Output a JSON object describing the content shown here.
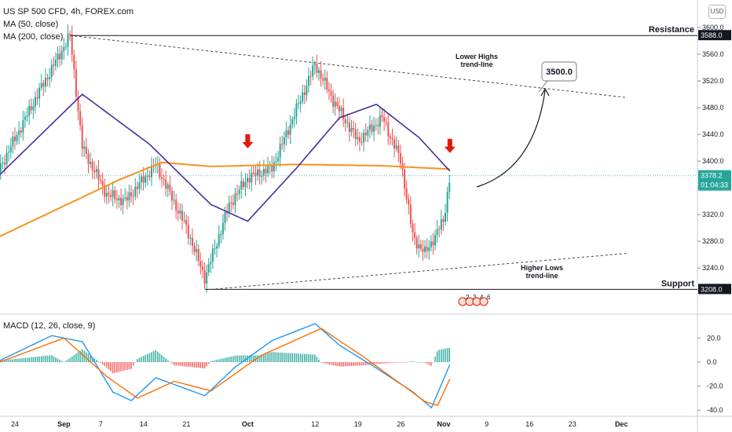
{
  "header": {
    "title": "US SP 500 CFD, 4h, FOREX.com",
    "ma50": "MA (50, close)",
    "ma200": "MA (200, close)",
    "currency": "USD"
  },
  "colors": {
    "up": "#26a69a",
    "down": "#ef5350",
    "ma50": "#4a2c9e",
    "ma200": "#f7931e",
    "macd": "#2196f3",
    "signal": "#ff6d00",
    "arrow": "#e0190b",
    "price_badge": "#26a69a"
  },
  "chart_data": [
    {
      "type": "candlestick",
      "title": "US SP 500 CFD, 4h, FOREX.com",
      "y_axis": {
        "min": 3200,
        "max": 3620,
        "ticks": [
          "3600.0",
          "3560.0",
          "3520.0",
          "3480.0",
          "3440.0",
          "3400.0",
          "3360.0",
          "3320.0",
          "3280.0",
          "3240.0"
        ]
      },
      "x_axis": {
        "ticks": [
          "24",
          "Sep",
          "7",
          "14",
          "21",
          "Oct",
          "12",
          "19",
          "26",
          "Nov",
          "9",
          "16",
          "23",
          "Dec"
        ]
      },
      "price_samples": [
        {
          "d": "2020-08-21",
          "v": 3380
        },
        {
          "d": "2020-08-28",
          "v": 3505
        },
        {
          "d": "2020-09-02",
          "v": 3588
        },
        {
          "d": "2020-09-04",
          "v": 3420
        },
        {
          "d": "2020-09-08",
          "v": 3350
        },
        {
          "d": "2020-09-11",
          "v": 3340
        },
        {
          "d": "2020-09-16",
          "v": 3395
        },
        {
          "d": "2020-09-21",
          "v": 3300
        },
        {
          "d": "2020-09-24",
          "v": 3225
        },
        {
          "d": "2020-09-28",
          "v": 3335
        },
        {
          "d": "2020-10-01",
          "v": 3375
        },
        {
          "d": "2020-10-05",
          "v": 3390
        },
        {
          "d": "2020-10-12",
          "v": 3545
        },
        {
          "d": "2020-10-15",
          "v": 3490
        },
        {
          "d": "2020-10-19",
          "v": 3430
        },
        {
          "d": "2020-10-23",
          "v": 3465
        },
        {
          "d": "2020-10-26",
          "v": 3400
        },
        {
          "d": "2020-10-28",
          "v": 3285
        },
        {
          "d": "2020-10-30",
          "v": 3262
        },
        {
          "d": "2020-11-02",
          "v": 3312
        },
        {
          "d": "2020-11-03",
          "v": 3378
        }
      ],
      "ma50_samples": [
        {
          "d": "2020-08-21",
          "v": 3375
        },
        {
          "d": "2020-09-04",
          "v": 3500
        },
        {
          "d": "2020-09-15",
          "v": 3425
        },
        {
          "d": "2020-09-25",
          "v": 3335
        },
        {
          "d": "2020-10-01",
          "v": 3310
        },
        {
          "d": "2020-10-09",
          "v": 3390
        },
        {
          "d": "2020-10-16",
          "v": 3465
        },
        {
          "d": "2020-10-22",
          "v": 3485
        },
        {
          "d": "2020-10-29",
          "v": 3435
        },
        {
          "d": "2020-11-03",
          "v": 3385
        }
      ],
      "ma200_samples": [
        {
          "d": "2020-08-21",
          "v": 3285
        },
        {
          "d": "2020-09-10",
          "v": 3372
        },
        {
          "d": "2020-09-17",
          "v": 3398
        },
        {
          "d": "2020-09-25",
          "v": 3392
        },
        {
          "d": "2020-10-09",
          "v": 3395
        },
        {
          "d": "2020-10-23",
          "v": 3393
        },
        {
          "d": "2020-11-03",
          "v": 3388
        }
      ],
      "horizontal_levels": [
        {
          "label": "Resistance",
          "value": 3588.0,
          "badge": "3588.0",
          "from": "2020-09-02",
          "to": "2020-12-03"
        },
        {
          "label": "Support",
          "value": 3208.0,
          "badge": "3208.0",
          "from": "2020-09-24",
          "to": "2020-12-03"
        }
      ],
      "trend_lines": [
        {
          "label": "Lower Highs\ntrend-line",
          "from": {
            "d": "2020-09-02",
            "v": 3588
          },
          "to": {
            "d": "2020-12-02",
            "v": 3495
          }
        },
        {
          "label": "Higher Lows\ntrend-line",
          "from": {
            "d": "2020-09-25",
            "v": 3208
          },
          "to": {
            "d": "2020-12-02",
            "v": 3262
          }
        }
      ],
      "target": {
        "label": "3500.0",
        "d": "2020-11-12",
        "v": 3500
      },
      "current_price": {
        "value": "3378.2",
        "countdown": "01:04:33"
      },
      "markers": [
        {
          "d": "2020-10-01",
          "v": 3405
        },
        {
          "d": "2020-11-03",
          "v": 3398
        }
      ],
      "event_icons": [
        "2",
        "3",
        "4",
        "6"
      ]
    },
    {
      "type": "macd",
      "title": "MACD (12, 26, close, 9)",
      "y_axis": {
        "min": -42,
        "max": 38,
        "ticks": [
          "20.0",
          "0.0",
          "-20.0",
          "-40.0"
        ]
      },
      "macd_samples": [
        {
          "d": "2020-08-21",
          "v": 0
        },
        {
          "d": "2020-08-30",
          "v": 22
        },
        {
          "d": "2020-09-04",
          "v": 17
        },
        {
          "d": "2020-09-09",
          "v": -25
        },
        {
          "d": "2020-09-12",
          "v": -32
        },
        {
          "d": "2020-09-16",
          "v": -13
        },
        {
          "d": "2020-09-24",
          "v": -28
        },
        {
          "d": "2020-09-29",
          "v": -4
        },
        {
          "d": "2020-10-05",
          "v": 18
        },
        {
          "d": "2020-10-12",
          "v": 32
        },
        {
          "d": "2020-10-16",
          "v": 14
        },
        {
          "d": "2020-10-22",
          "v": -5
        },
        {
          "d": "2020-10-28",
          "v": -25
        },
        {
          "d": "2020-10-31",
          "v": -38
        },
        {
          "d": "2020-11-03",
          "v": -2
        }
      ],
      "signal_samples": [
        {
          "d": "2020-08-21",
          "v": -1
        },
        {
          "d": "2020-09-01",
          "v": 20
        },
        {
          "d": "2020-09-08",
          "v": -12
        },
        {
          "d": "2020-09-13",
          "v": -30
        },
        {
          "d": "2020-09-19",
          "v": -16
        },
        {
          "d": "2020-09-25",
          "v": -24
        },
        {
          "d": "2020-10-03",
          "v": 5
        },
        {
          "d": "2020-10-13",
          "v": 28
        },
        {
          "d": "2020-10-20",
          "v": 4
        },
        {
          "d": "2020-10-30",
          "v": -33
        },
        {
          "d": "2020-11-01",
          "v": -36
        },
        {
          "d": "2020-11-03",
          "v": -14
        }
      ]
    }
  ]
}
